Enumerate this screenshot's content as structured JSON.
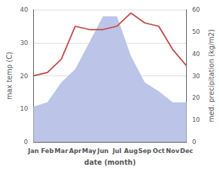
{
  "chart_data": {
    "type": "line",
    "xlabel": "date (month)",
    "ylabel": "max temp (C)",
    "y2label": "med. precipitation (kg/m2)",
    "categories": [
      "Jan",
      "Feb",
      "Mar",
      "Apr",
      "May",
      "Jun",
      "Jul",
      "Aug",
      "Sep",
      "Oct",
      "Nov",
      "Dec"
    ],
    "series": [
      {
        "type": "area",
        "axis": "y2",
        "color": "#bcc5e8",
        "values": [
          16,
          18,
          27,
          33,
          45,
          57,
          57,
          39,
          27,
          23,
          18,
          18
        ]
      },
      {
        "type": "line",
        "color": "#c0504d",
        "values": [
          20,
          21,
          25,
          35,
          34,
          34,
          35,
          39,
          36,
          35,
          28,
          23
        ]
      }
    ],
    "ylim": [
      0,
      40
    ],
    "yticks": [
      0,
      10,
      20,
      30,
      40
    ],
    "y2lim": [
      0,
      60
    ],
    "y2ticks": [
      0,
      10,
      20,
      30,
      40,
      50,
      60
    ],
    "grid": true
  }
}
